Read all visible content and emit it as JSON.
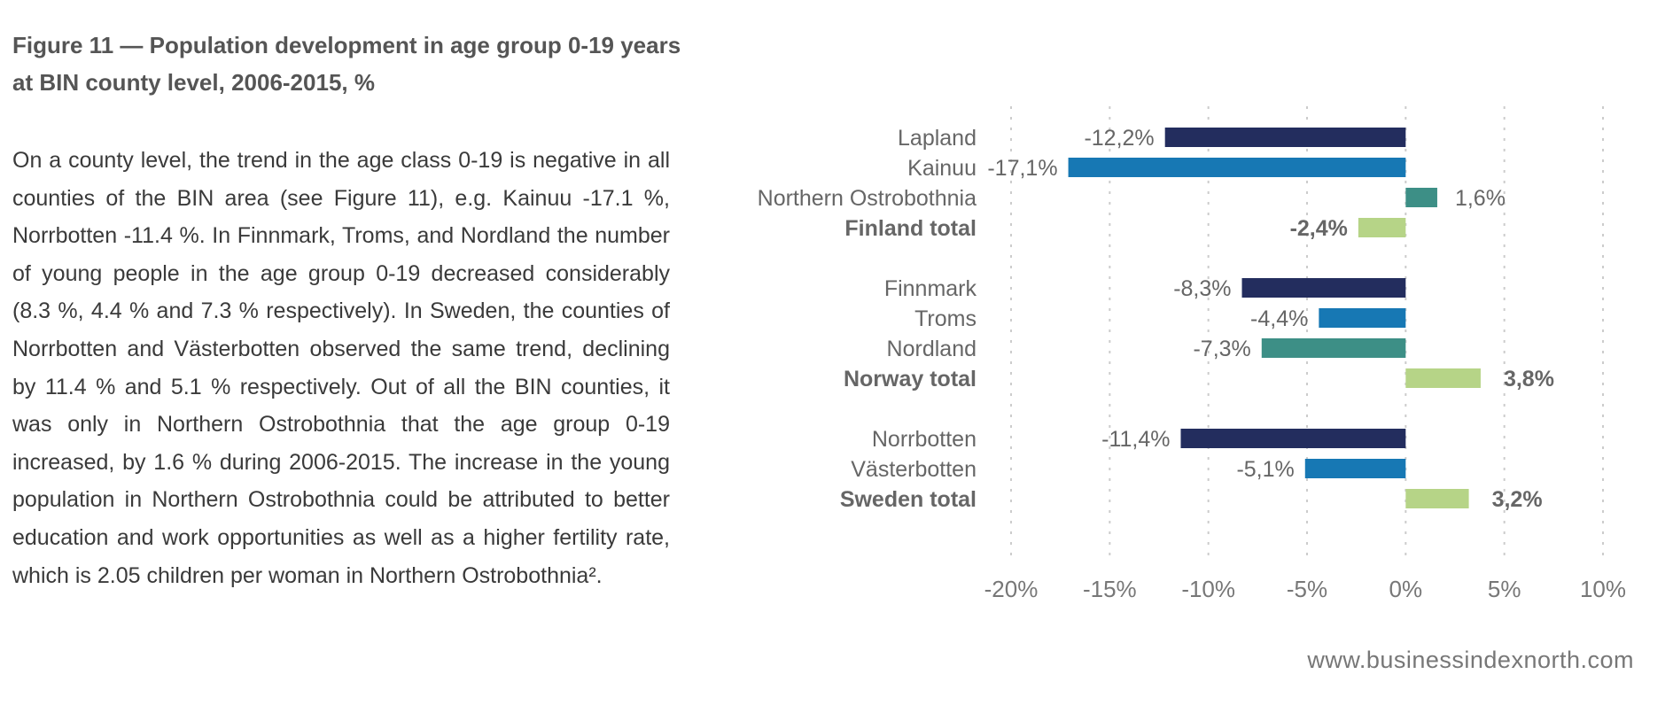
{
  "figure": {
    "title": "Figure 11 — Population development in age group 0-19 years at BIN county level, 2006-2015, %"
  },
  "body": {
    "paragraph": "On a county level, the trend in the age class 0-19 is negative in all counties of the BIN area (see Figure 11), e.g. Kainuu -17.1 %, Norrbotten -11.4 %. In Finnmark, Troms, and Nordland the number of young people in the age group 0-19 decreased considerably (8.3 %, 4.4 % and 7.3 % respectively). In Sweden, the counties of Norrbotten and Västerbotten observed the same trend, declining by 11.4 % and 5.1 % respectively. Out of all the BIN counties, it was only in Northern Ostrobothnia that the age group 0-19 increased, by 1.6 % during 2006-2015. The increase in the young population in Northern Ostrobothnia could be attributed to better education and work opportunities as well as a higher fertility rate, which is 2.05 children per woman in Northern Ostrobothnia²."
  },
  "source": {
    "text": "www.businessindexnorth.com"
  },
  "colors": {
    "navy": "#232d5e",
    "blue": "#1778b4",
    "teal": "#3d8f86",
    "light_green": "#b6d487",
    "grid": "#cccccc",
    "text": "#5a5a5a"
  },
  "chart_data": {
    "type": "bar",
    "orientation": "horizontal",
    "xlim": [
      -20,
      10
    ],
    "x_ticks": [
      -20,
      -15,
      -10,
      -5,
      0,
      5,
      10
    ],
    "x_tick_labels": [
      "-20%",
      "-15%",
      "-10%",
      "-5%",
      "0%",
      "5%",
      "10%"
    ],
    "grid": "vertical dashed",
    "legend": "none",
    "groups": [
      {
        "bars": [
          {
            "label": "Lapland",
            "value": -12.2,
            "value_label": "-12,2%",
            "color": "navy",
            "bold": false
          },
          {
            "label": "Kainuu",
            "value": -17.1,
            "value_label": "-17,1%",
            "color": "blue",
            "bold": false
          },
          {
            "label": "Northern Ostrobothnia",
            "value": 1.6,
            "value_label": "1,6%",
            "color": "teal",
            "bold": false
          },
          {
            "label": "Finland total",
            "value": -2.4,
            "value_label": "-2,4%",
            "color": "light_green",
            "bold": true
          }
        ]
      },
      {
        "bars": [
          {
            "label": "Finnmark",
            "value": -8.3,
            "value_label": "-8,3%",
            "color": "navy",
            "bold": false
          },
          {
            "label": "Troms",
            "value": -4.4,
            "value_label": "-4,4%",
            "color": "blue",
            "bold": false
          },
          {
            "label": "Nordland",
            "value": -7.3,
            "value_label": "-7,3%",
            "color": "teal",
            "bold": false
          },
          {
            "label": "Norway total",
            "value": 3.8,
            "value_label": "3,8%",
            "color": "light_green",
            "bold": true
          }
        ]
      },
      {
        "bars": [
          {
            "label": "Norrbotten",
            "value": -11.4,
            "value_label": "-11,4%",
            "color": "navy",
            "bold": false
          },
          {
            "label": "Västerbotten",
            "value": -5.1,
            "value_label": "-5,1%",
            "color": "blue",
            "bold": false
          },
          {
            "label": "Sweden total",
            "value": 3.2,
            "value_label": "3,2%",
            "color": "light_green",
            "bold": true
          }
        ]
      }
    ]
  }
}
